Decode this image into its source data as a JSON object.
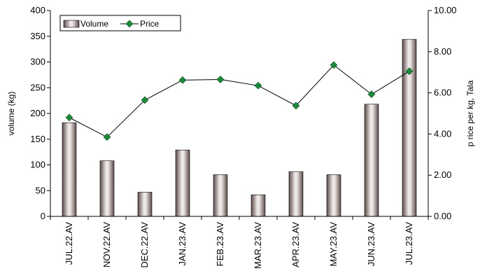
{
  "chart_data": {
    "type": "bar+line",
    "categories": [
      "JUL.22.AV",
      "NOV.22.AV",
      "DEC.22.AV",
      "JAN.23.AV",
      "FEB.23.AV",
      "MAR.23.AV",
      "APR.23.AV",
      "MAY.23.AV",
      "JUN.23.AV",
      "JUL.23.AV"
    ],
    "series": [
      {
        "name": "Volume",
        "type": "bar",
        "axis": "left",
        "values": [
          182,
          108,
          47,
          129,
          81,
          42,
          87,
          81,
          218,
          344
        ]
      },
      {
        "name": "Price",
        "type": "line",
        "axis": "right",
        "values": [
          4.8,
          3.85,
          5.65,
          6.62,
          6.65,
          6.35,
          5.38,
          7.35,
          5.93,
          7.05
        ]
      }
    ],
    "ylabel": "volume (kg)",
    "y2label": "p rice per kg, Tala",
    "ylim": [
      0,
      400
    ],
    "y2lim": [
      0,
      10
    ],
    "yticks": [
      "0",
      "50",
      "100",
      "150",
      "200",
      "250",
      "300",
      "350",
      "400"
    ],
    "y2ticks": [
      "0.00",
      "2.00",
      "4.00",
      "6.00",
      "8.00",
      "10.00"
    ],
    "legend_position": "top-left",
    "grid": false,
    "colors": {
      "bar_dark": "#5a4a48",
      "bar_light": "#f2eeee",
      "line": "#000000",
      "marker": "#1a8a3a"
    }
  }
}
